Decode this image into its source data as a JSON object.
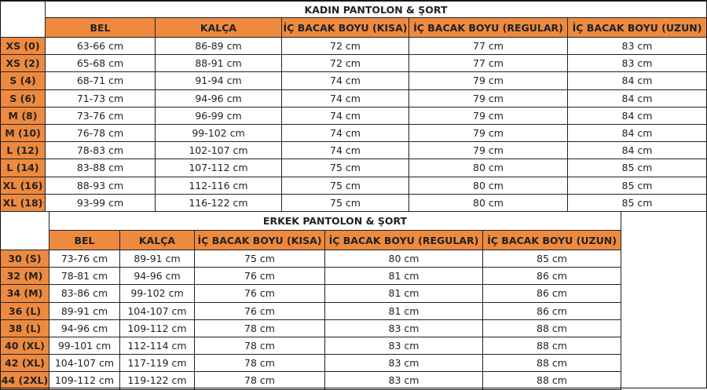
{
  "women": {
    "title": "KADIN PANTOLON & ŞORT",
    "headers": [
      "BEL",
      "KALÇA",
      "İÇ BACAK BOYU (KISA)",
      "İÇ BACAK BOYU (REGULAR)",
      "İÇ BACAK BOYU (UZUN)"
    ],
    "rows": [
      [
        "XS (0)",
        "63-66 cm",
        "86-89 cm",
        "72 cm",
        "77 cm",
        "83 cm"
      ],
      [
        "XS (2)",
        "65-68 cm",
        "88-91 cm",
        "72 cm",
        "77 cm",
        "83 cm"
      ],
      [
        "S (4)",
        "68-71 cm",
        "91-94 cm",
        "74 cm",
        "79 cm",
        "84 cm"
      ],
      [
        "S (6)",
        "71-73 cm",
        "94-96 cm",
        "74 cm",
        "79 cm",
        "84 cm"
      ],
      [
        "M (8)",
        "73-76 cm",
        "96-99 cm",
        "74 cm",
        "79 cm",
        "84 cm"
      ],
      [
        "M (10)",
        "76-78 cm",
        "99-102 cm",
        "74 cm",
        "79 cm",
        "84 cm"
      ],
      [
        "L (12)",
        "78-83 cm",
        "102-107 cm",
        "74 cm",
        "79 cm",
        "84 cm"
      ],
      [
        "L (14)",
        "83-88 cm",
        "107-112 cm",
        "75 cm",
        "80 cm",
        "85 cm"
      ],
      [
        "XL (16)",
        "88-93 cm",
        "112-116 cm",
        "75 cm",
        "80 cm",
        "85 cm"
      ],
      [
        "XL (18)",
        "93-99 cm",
        "116-122 cm",
        "75 cm",
        "80 cm",
        "85 cm"
      ]
    ]
  },
  "men": {
    "title": "ERKEK PANTOLON & ŞORT",
    "headers": [
      "BEL",
      "KALÇA",
      "İÇ BACAK BOYU (KISA)",
      "İÇ BACAK BOYU (REGULAR)",
      "İÇ BACAK BOYU (UZUN)"
    ],
    "rows": [
      [
        "30 (S)",
        "73-76 cm",
        "89-91 cm",
        "75 cm",
        "80 cm",
        "85 cm"
      ],
      [
        "32 (M)",
        "78-81 cm",
        "94-96 cm",
        "76 cm",
        "81 cm",
        "86 cm"
      ],
      [
        "34 (M)",
        "83-86 cm",
        "99-102 cm",
        "76 cm",
        "81 cm",
        "86 cm"
      ],
      [
        "36 (L)",
        "89-91 cm",
        "104-107 cm",
        "76 cm",
        "81 cm",
        "86 cm"
      ],
      [
        "38 (L)",
        "94-96 cm",
        "109-112 cm",
        "78 cm",
        "83 cm",
        "88 cm"
      ],
      [
        "40 (XL)",
        "99-101 cm",
        "112-114 cm",
        "78 cm",
        "83 cm",
        "88 cm"
      ],
      [
        "42 (XL)",
        "104-107 cm",
        "117-119 cm",
        "78 cm",
        "83 cm",
        "88 cm"
      ],
      [
        "44 (2XL)",
        "109-112 cm",
        "119-122 cm",
        "78 cm",
        "83 cm",
        "88 cm"
      ]
    ]
  },
  "colors": {
    "header_bg": "#ee8a3f",
    "border": "#222222"
  }
}
